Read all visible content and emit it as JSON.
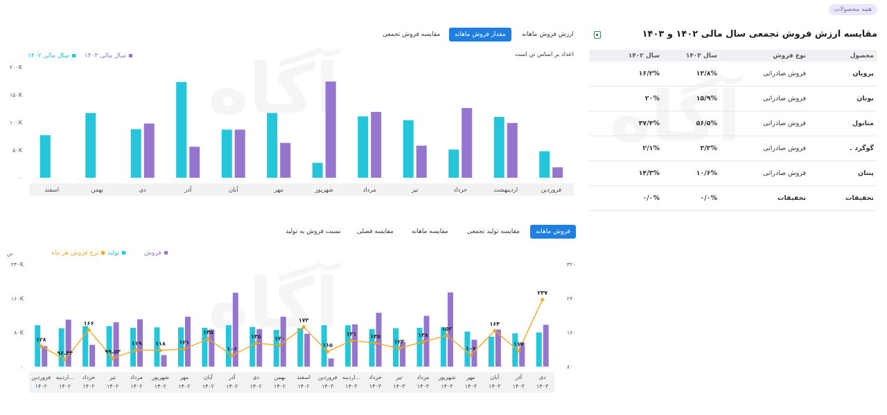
{
  "all_products_label": "همه محصولات",
  "panel": {
    "title": "مقایسه ارزش فروش تجمعی سال مالی ۱۴۰۲ و ۱۴۰۳",
    "columns": [
      "محصول",
      "نوع فروش",
      "سال ۱۴۰۳",
      "سال ۱۴۰۲"
    ],
    "rows": [
      {
        "product": "پرویان",
        "type": "فروش صادراتی",
        "y1403": "۱۳/۸%",
        "y1402": "۱۶/۲%"
      },
      {
        "product": "بوتان",
        "type": "فروش صادراتی",
        "y1403": "۱۵/۹%",
        "y1402": "۲۰%"
      },
      {
        "product": "متانول",
        "type": "فروش صادراتی",
        "y1403": "۵۶/۵%",
        "y1402": "۴۷/۴%"
      },
      {
        "product": "گوگرد .",
        "type": "فروش صادراتی",
        "y1403": "۳/۲%",
        "y1402": "۲/۱%"
      },
      {
        "product": "پنتان",
        "type": "فروش صادراتی",
        "y1403": "۱۰/۶%",
        "y1402": "۱۴/۳%"
      },
      {
        "product": "تخفیفات",
        "type": "تخفیفات",
        "y1403": "۰/۰%",
        "y1402": "۰/۰%"
      }
    ]
  },
  "top_tabs": [
    {
      "label": "ارزش فروش ماهانه",
      "active": false
    },
    {
      "label": "مقدار فروش ماهانه",
      "active": true
    },
    {
      "label": "مقایسه فروش تجمعی",
      "active": false
    }
  ],
  "bottom_tabs": [
    {
      "label": "فروش ماهانه",
      "active": true
    },
    {
      "label": "مقایسه تولید تجمعی",
      "active": false
    },
    {
      "label": "مقایسه ماهانه",
      "active": false
    },
    {
      "label": "مقایسه فصلی",
      "active": false
    },
    {
      "label": "نسبت فروش به تولید",
      "active": false
    }
  ],
  "colors": {
    "teal": "#26c6da",
    "purple": "#9575cd",
    "orange": "#f6a623",
    "blue": "#1e7fe0"
  },
  "chart_data": [
    {
      "type": "bar",
      "note": "اعداد بر اساس تن است",
      "categories": [
        "فروردین",
        "اردیبهشت",
        "خرداد",
        "تیر",
        "مرداد",
        "شهریور",
        "مهر",
        "آبان",
        "آذر",
        "دی",
        "بهمن",
        "اسفند"
      ],
      "series": [
        {
          "name": "سال مالی ۱۴۰۲",
          "color": "#26c6da",
          "values": [
            48000,
            110000,
            51000,
            104000,
            111000,
            27000,
            117000,
            87000,
            173000,
            88000,
            117000,
            77000
          ]
        },
        {
          "name": "سال مالی ۱۴۰۳",
          "color": "#9575cd",
          "values": [
            19000,
            99000,
            126000,
            58000,
            119000,
            174000,
            63000,
            87000,
            56000,
            98000,
            0,
            0
          ]
        }
      ],
      "ylim": [
        0,
        200000
      ],
      "yticks": [
        "۰",
        "۵۰K",
        "۱۰۰K",
        "۱۵۰K",
        "۲۰۰K"
      ],
      "legend": "top-left"
    },
    {
      "type": "bar",
      "y_unit_label": "تن",
      "categories": [
        [
          "فروردین",
          "۱۴۰۲"
        ],
        [
          "اردیبه...",
          "۱۴۰۲"
        ],
        [
          "خرداد",
          "۱۴۰۲"
        ],
        [
          "تیر",
          "۱۴۰۲"
        ],
        [
          "مرداد",
          "۱۴۰۲"
        ],
        [
          "شهریور",
          "۱۴۰۲"
        ],
        [
          "مهر",
          "۱۴۰۲"
        ],
        [
          "آبان",
          "۱۴۰۲"
        ],
        [
          "آذر",
          "۱۴۰۲"
        ],
        [
          "دی",
          "۱۴۰۲"
        ],
        [
          "بهمن",
          "۱۴۰۲"
        ],
        [
          "اسفند",
          "۱۴۰۲"
        ],
        [
          "فروردین",
          "۱۴۰۳"
        ],
        [
          "اردیبه...",
          "۱۴۰۳"
        ],
        [
          "خرداد",
          "۱۴۰۳"
        ],
        [
          "تیر",
          "۱۴۰۳"
        ],
        [
          "مرداد",
          "۱۴۰۳"
        ],
        [
          "شهریور",
          "۱۴۰۳"
        ],
        [
          "مهر",
          "۱۴۰۳"
        ],
        [
          "آبان",
          "۱۴۰۳"
        ],
        [
          "آذر",
          "۱۴۰۳"
        ],
        [
          "دی",
          "۱۴۰۳"
        ]
      ],
      "series": [
        {
          "name": "فروش",
          "color": "#9575cd",
          "values": [
            48000,
            110000,
            51000,
            104000,
            111000,
            27000,
            117000,
            87000,
            173000,
            88000,
            117000,
            77000,
            19000,
            99000,
            126000,
            58000,
            119000,
            174000,
            63000,
            87000,
            56000,
            98000
          ]
        },
        {
          "name": "تولید",
          "color": "#26c6da",
          "values": [
            97000,
            90000,
            95000,
            95000,
            91000,
            92000,
            92000,
            91000,
            97000,
            93000,
            86000,
            90000,
            97000,
            97000,
            88000,
            90000,
            91000,
            92000,
            82000,
            70000,
            78000,
            80000
          ]
        },
        {
          "name": "نرخ فروش هر ماه",
          "color": "#f6a623",
          "values": [
            128,
            96.44,
            166,
            99.53,
            119,
            118,
            121,
            145,
            106,
            135,
            130,
            173,
            115,
            141,
            135,
            123,
            138,
            153,
            107,
            164,
            117,
            237
          ]
        }
      ],
      "line_labels": [
        "۱۲۸",
        "۹۶.۴۴",
        "۱۶۶",
        "۹۹.۵۳",
        "۱۱۹",
        "۱۱۸",
        "۱۲۱",
        "۱۴۵",
        "۱۰۶",
        "۱۳۵",
        "۱۳۰",
        "۱۷۳",
        "۱۱۵",
        "۱۴۱",
        "۱۳۵",
        "۱۲۳",
        "۱۳۸",
        "۱۵۳",
        "۱۰۷",
        "۱۶۴",
        "۱۱۷",
        "۲۳۷"
      ],
      "ylim_left": [
        0,
        240000
      ],
      "yticks_left": [
        "۰",
        "۸۰K",
        "۱۶۰K",
        "۲۴۰K"
      ],
      "ylim_right": [
        80,
        320
      ],
      "yticks_right": [
        "۸۰",
        "۱۶۰",
        "۲۴۰",
        "۳۲۰"
      ],
      "legend": "top-left"
    }
  ]
}
